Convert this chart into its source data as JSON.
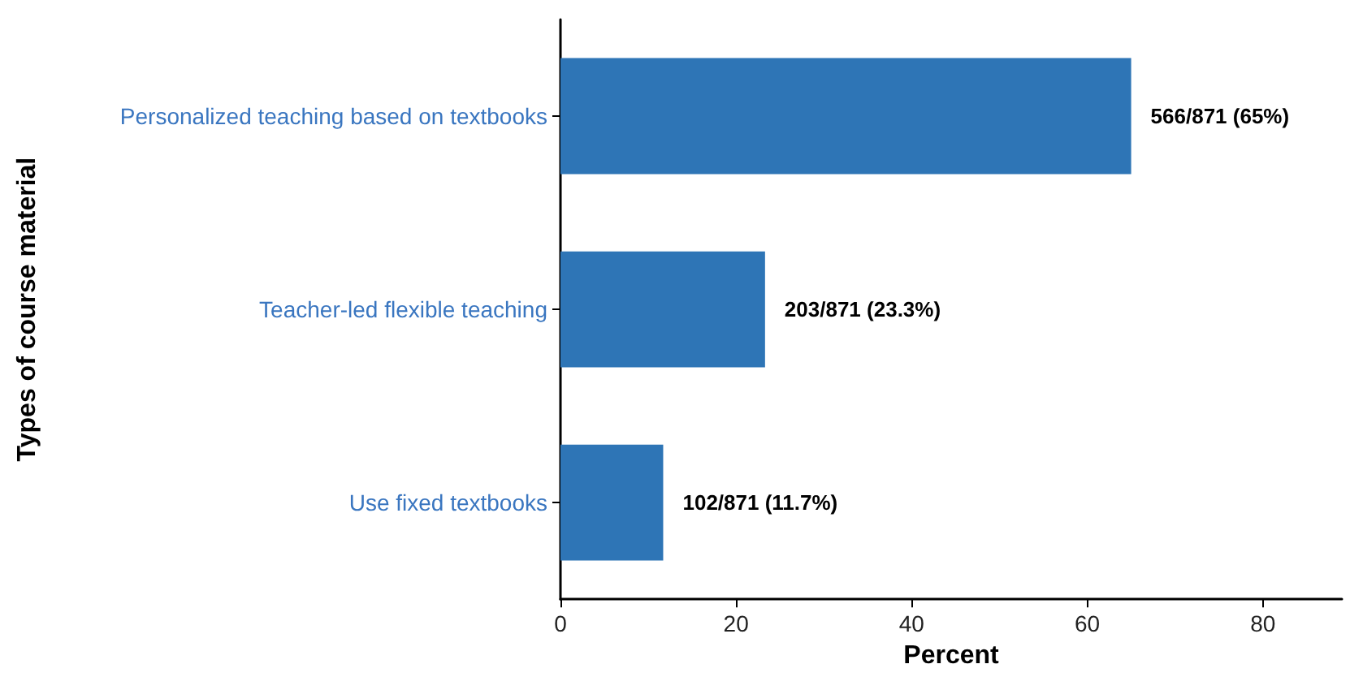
{
  "chart_data": {
    "type": "bar",
    "orientation": "horizontal",
    "xlabel": "Percent",
    "ylabel": "Types of course material",
    "categories": [
      "Personalized teaching based on textbooks",
      "Teacher-led flexible teaching",
      "Use fixed textbooks"
    ],
    "values": [
      65,
      23.3,
      11.7
    ],
    "color": "#2e75b6",
    "value_labels": [
      "566/871 (65%)",
      "203/871 (23.3%)",
      "102/871 (11.7%)"
    ],
    "xlim": [
      0,
      89
    ],
    "xticks": [
      0,
      20,
      40,
      60,
      80
    ],
    "grid": false
  }
}
